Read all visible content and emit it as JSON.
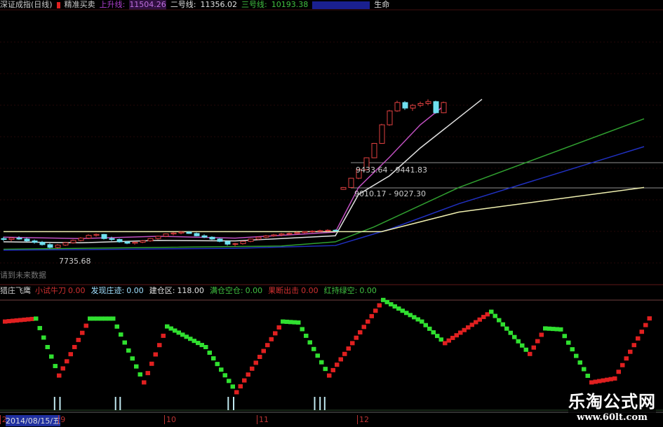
{
  "header": {
    "title": "深证成指(日线)",
    "formula": "精准买卖",
    "line1": {
      "label": "上升线:",
      "value": "11504.26",
      "color": "#b040d0"
    },
    "line2": {
      "label": "二号线:",
      "value": "11356.02",
      "color": "#e0e0e0"
    },
    "line3": {
      "label": "三号线:",
      "value": "10193.38",
      "color": "#40c040"
    },
    "line4": {
      "color": "#2030d0"
    },
    "line5": {
      "label": "生命"
    }
  },
  "price_labels": {
    "upper": "9433.64 - 9441.83",
    "lower": "9010.17 - 9027.30",
    "low": "7735.68",
    "note": "请到未来数据"
  },
  "indicator": {
    "name": "猎庄飞鹰",
    "items": [
      {
        "label": "小试牛刀",
        "value": "0.00",
        "color": "#d03030"
      },
      {
        "label": "发现庄迹:",
        "value": "0.00",
        "color": "#a0e0ff"
      },
      {
        "label": "建仓区:",
        "value": "118.00",
        "color": "#e0e0e0"
      },
      {
        "label": "满仓空仓:",
        "value": "0.00",
        "color": "#40c040"
      },
      {
        "label": "果断出击",
        "value": "0.00",
        "color": "#d03030"
      },
      {
        "label": "红持绿空:",
        "value": "0.00",
        "color": "#40c040"
      }
    ]
  },
  "xaxis": {
    "date": "2014/08/15/五",
    "ticks": [
      {
        "label": "2",
        "idx": -0.3
      },
      {
        "label": "9",
        "idx": 7.3
      },
      {
        "label": "10",
        "idx": 21
      },
      {
        "label": "11",
        "idx": 33
      },
      {
        "label": "12",
        "idx": 46
      }
    ]
  },
  "watermark": {
    "name": "乐淘公式网",
    "url": "www.60lt.com"
  },
  "chart_data": {
    "type": "candlestick",
    "title": "深证成指(日线)",
    "candles": [
      [
        7950,
        7990,
        7900,
        7930
      ],
      [
        7930,
        7980,
        7890,
        7960
      ],
      [
        7960,
        8000,
        7920,
        7940
      ],
      [
        7940,
        7970,
        7880,
        7900
      ],
      [
        7900,
        7930,
        7840,
        7870
      ],
      [
        7870,
        7900,
        7800,
        7820
      ],
      [
        7820,
        7850,
        7736,
        7760
      ],
      [
        7760,
        7830,
        7736,
        7810
      ],
      [
        7810,
        7880,
        7790,
        7860
      ],
      [
        7860,
        7930,
        7840,
        7910
      ],
      [
        7910,
        7980,
        7890,
        7960
      ],
      [
        7960,
        8040,
        7940,
        8020
      ],
      [
        8020,
        8060,
        7990,
        8040
      ],
      [
        8040,
        8050,
        7930,
        7950
      ],
      [
        7950,
        7990,
        7900,
        7930
      ],
      [
        7930,
        7950,
        7860,
        7880
      ],
      [
        7880,
        7900,
        7830,
        7850
      ],
      [
        7850,
        7890,
        7820,
        7870
      ],
      [
        7870,
        7920,
        7850,
        7900
      ],
      [
        7900,
        7960,
        7880,
        7950
      ],
      [
        7950,
        8010,
        7930,
        8000
      ],
      [
        8000,
        8060,
        7980,
        8050
      ],
      [
        8050,
        8090,
        8020,
        8070
      ],
      [
        8070,
        8110,
        8040,
        8090
      ],
      [
        8090,
        8110,
        8050,
        8060
      ],
      [
        8060,
        8080,
        8000,
        8010
      ],
      [
        8010,
        8040,
        7960,
        7980
      ],
      [
        7980,
        8000,
        7920,
        7940
      ],
      [
        7940,
        7960,
        7870,
        7890
      ],
      [
        7890,
        7900,
        7800,
        7830
      ],
      [
        7830,
        7860,
        7780,
        7840
      ],
      [
        7840,
        7900,
        7820,
        7890
      ],
      [
        7890,
        7950,
        7870,
        7940
      ],
      [
        7940,
        7990,
        7920,
        7980
      ],
      [
        7980,
        8030,
        7960,
        8010
      ],
      [
        8010,
        8050,
        7990,
        8030
      ],
      [
        8030,
        8070,
        8000,
        8050
      ],
      [
        8050,
        8080,
        8020,
        8060
      ],
      [
        8060,
        8100,
        8040,
        8080
      ],
      [
        8080,
        8110,
        8060,
        8100
      ],
      [
        8100,
        8130,
        8070,
        8110
      ],
      [
        8110,
        8140,
        8090,
        8120
      ],
      [
        8120,
        8150,
        8100,
        8130
      ],
      [
        8130,
        8150,
        8100,
        8120
      ],
      [
        9010,
        9060,
        9000,
        9050
      ],
      [
        9050,
        9260,
        9040,
        9250
      ],
      [
        9250,
        9445,
        9230,
        9434
      ],
      [
        9434,
        9700,
        9420,
        9690
      ],
      [
        9690,
        10010,
        9680,
        10000
      ],
      [
        10000,
        10420,
        9990,
        10400
      ],
      [
        10400,
        10720,
        10380,
        10700
      ],
      [
        10700,
        10920,
        10680,
        10880
      ],
      [
        10880,
        10910,
        10720,
        10760
      ],
      [
        10760,
        10850,
        10700,
        10820
      ],
      [
        10820,
        10900,
        10780,
        10860
      ],
      [
        10860,
        10950,
        10820,
        10900
      ],
      [
        10900,
        10920,
        10640,
        10660
      ],
      [
        10660,
        10900,
        10650,
        10880
      ]
    ],
    "moving_averages": [
      {
        "color": "#c050c0",
        "values": [
          [
            0,
            7980
          ],
          [
            10,
            7950
          ],
          [
            20,
            8000
          ],
          [
            30,
            7960
          ],
          [
            43,
            8090
          ],
          [
            46,
            9050
          ],
          [
            50,
            9700
          ],
          [
            54,
            10400
          ],
          [
            57,
            10800
          ]
        ]
      },
      {
        "color": "#e0e0e0",
        "values": [
          [
            0,
            7880
          ],
          [
            10,
            7860
          ],
          [
            20,
            7910
          ],
          [
            30,
            7900
          ],
          [
            43,
            8010
          ],
          [
            46,
            8900
          ],
          [
            50,
            9300
          ],
          [
            54,
            9900
          ],
          [
            62,
            10950
          ]
        ]
      },
      {
        "color": "#30a030",
        "values": [
          [
            0,
            7720
          ],
          [
            20,
            7760
          ],
          [
            36,
            7790
          ],
          [
            43,
            7880
          ],
          [
            48,
            8200
          ],
          [
            59,
            9050
          ],
          [
            83,
            10530
          ]
        ]
      },
      {
        "color": "#2030c0",
        "values": [
          [
            0,
            7700
          ],
          [
            30,
            7740
          ],
          [
            43,
            7800
          ],
          [
            50,
            8150
          ],
          [
            59,
            8700
          ],
          [
            83,
            9930
          ]
        ]
      },
      {
        "color": "#f0f0b0",
        "values": [
          [
            0,
            8100
          ],
          [
            18,
            8100
          ],
          [
            49,
            8100
          ],
          [
            59,
            8520
          ],
          [
            83,
            9050
          ]
        ]
      }
    ],
    "oscillator": {
      "ylim": [
        0,
        100
      ],
      "points": [
        [
          0,
          76
        ],
        [
          4,
          79
        ],
        [
          7,
          21
        ],
        [
          11,
          79
        ],
        [
          14,
          79
        ],
        [
          18,
          14
        ],
        [
          21,
          71
        ],
        [
          26,
          50
        ],
        [
          30,
          4
        ],
        [
          36,
          76
        ],
        [
          38,
          75
        ],
        [
          42,
          21
        ],
        [
          49,
          98
        ],
        [
          54,
          76
        ],
        [
          57,
          54
        ],
        [
          63,
          86
        ],
        [
          68,
          43
        ],
        [
          70,
          69
        ],
        [
          72,
          68
        ],
        [
          76,
          14
        ],
        [
          79,
          18
        ],
        [
          84,
          86
        ]
      ],
      "up_color": "#e02020",
      "down_color": "#30e030"
    },
    "volume_spikes": [
      5.8,
      6.5,
      13.7,
      14.3,
      28.3,
      29,
      39.5,
      40.2,
      40.8
    ]
  }
}
